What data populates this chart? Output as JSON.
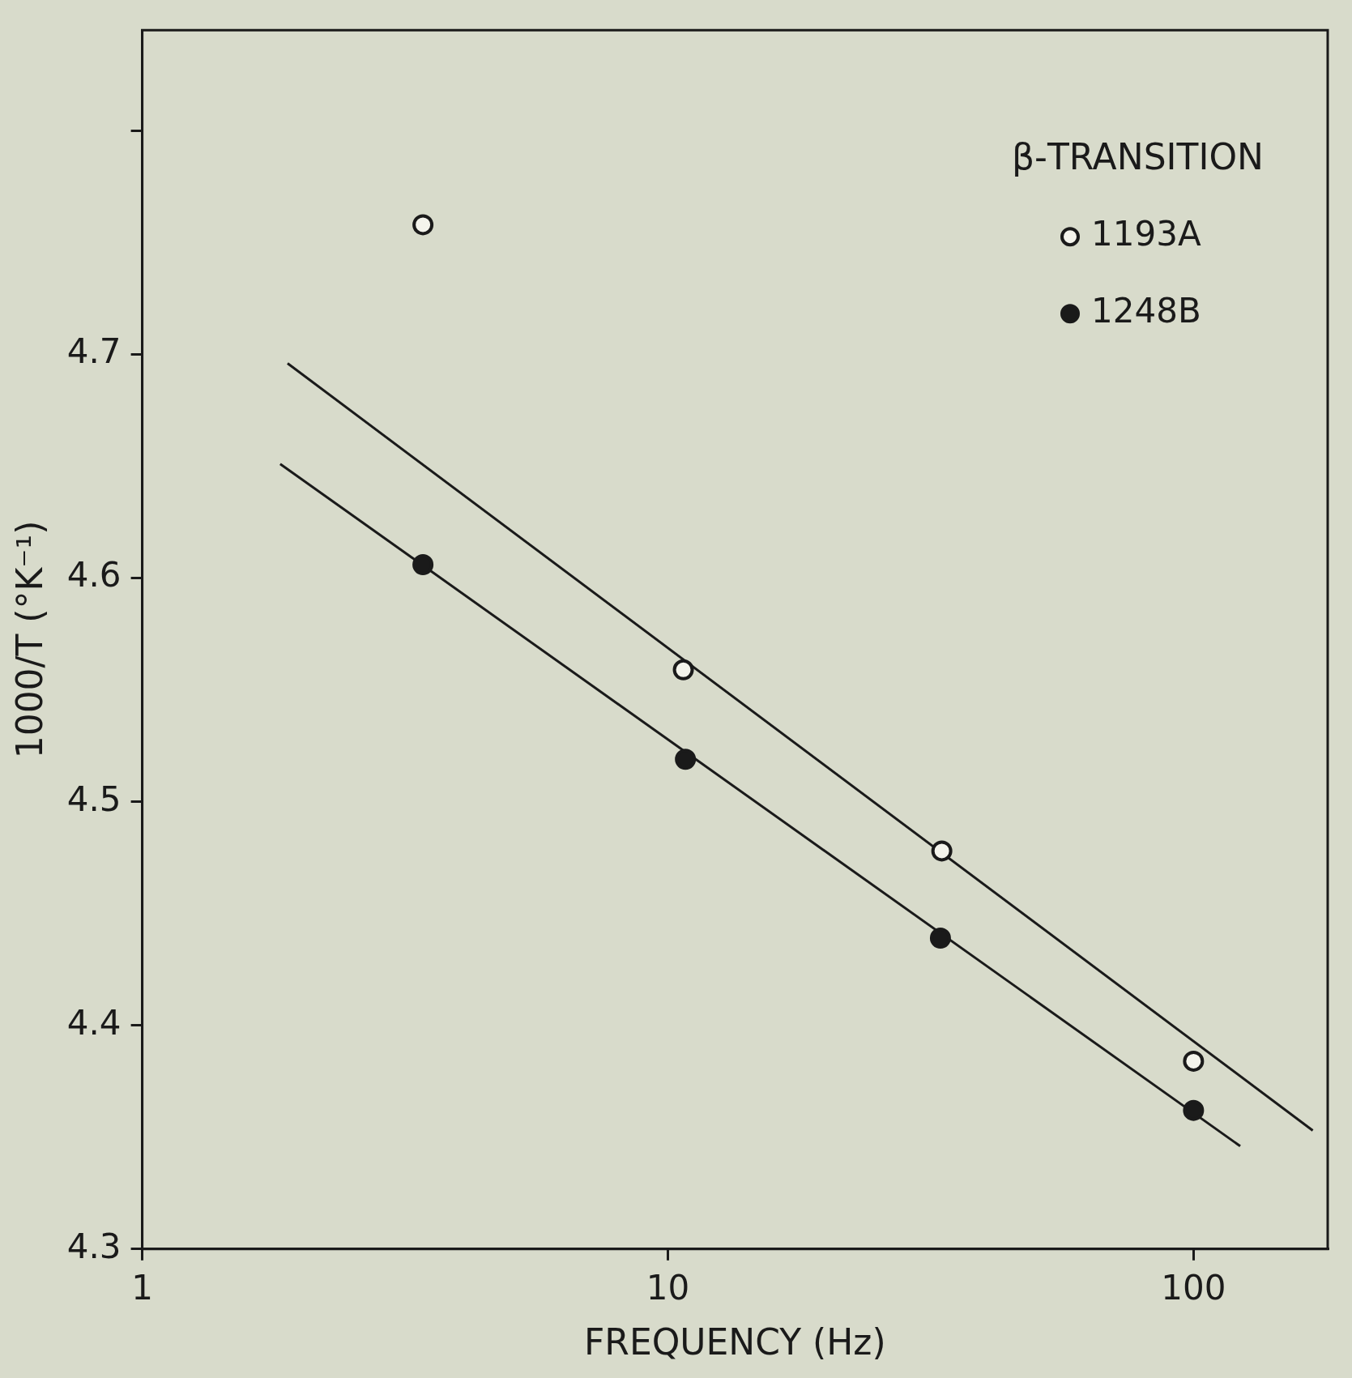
{
  "chart_data": {
    "type": "scatter",
    "xlabel": "FREQUENCY (Hz)",
    "ylabel": "1000/T (°K⁻¹)",
    "legend_title": "β-TRANSITION",
    "log": "x",
    "xlim": [
      1,
      180
    ],
    "xticks": [
      1,
      10,
      100
    ],
    "ylim": [
      4.3,
      4.845
    ],
    "yticks": [
      4.3,
      4.4,
      4.5,
      4.6,
      4.7,
      {
        "value": 4.8,
        "label": null
      }
    ],
    "grid": false,
    "legend": "top right",
    "marker": "circle",
    "series": [
      {
        "name": "1193A",
        "color": "#f4f4ec",
        "x": [
          3.42,
          10.7,
          33.2,
          100
        ],
        "values": [
          4.758,
          4.559,
          4.478,
          4.384
        ]
      },
      {
        "name": "1248B",
        "color": "#1a1a1a",
        "x": [
          3.42,
          10.8,
          33,
          100
        ],
        "values": [
          4.606,
          4.519,
          4.439,
          4.362
        ]
      },
      {
        "type": "line",
        "color": "#1a1a1a",
        "marker": "none",
        "x": [
          1.89,
          168.6
        ],
        "values": [
          4.696,
          4.353
        ]
      },
      {
        "type": "line",
        "color": "#1a1a1a",
        "marker": "none",
        "x": [
          1.83,
          122.7
        ],
        "values": [
          4.651,
          4.346
        ]
      }
    ]
  }
}
